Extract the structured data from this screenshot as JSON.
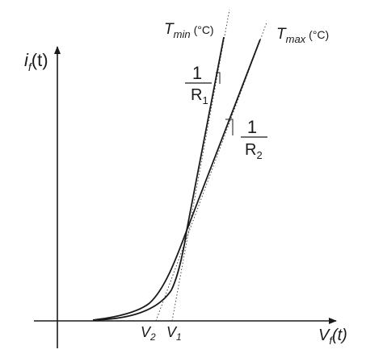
{
  "axes": {
    "y_label": {
      "main": "i",
      "sub": "f",
      "tail": "(t)"
    },
    "x_label": {
      "main": "V",
      "sub": "f",
      "tail": "(t)"
    }
  },
  "curves": [
    {
      "id": "tmin",
      "label_main": "T",
      "label_sub": "min",
      "label_unit": "(°C)",
      "slope_num": "1",
      "slope_den_main": "R",
      "slope_den_sub": "1"
    },
    {
      "id": "tmax",
      "label_main": "T",
      "label_sub": "max",
      "label_unit": "(°C)",
      "slope_num": "1",
      "slope_den_main": "R",
      "slope_den_sub": "2"
    }
  ],
  "voltage_markers": [
    {
      "main": "V",
      "sub": "2"
    },
    {
      "main": "V",
      "sub": "1"
    }
  ],
  "colors": {
    "line": "#1a1a1a",
    "background": "#ffffff"
  }
}
